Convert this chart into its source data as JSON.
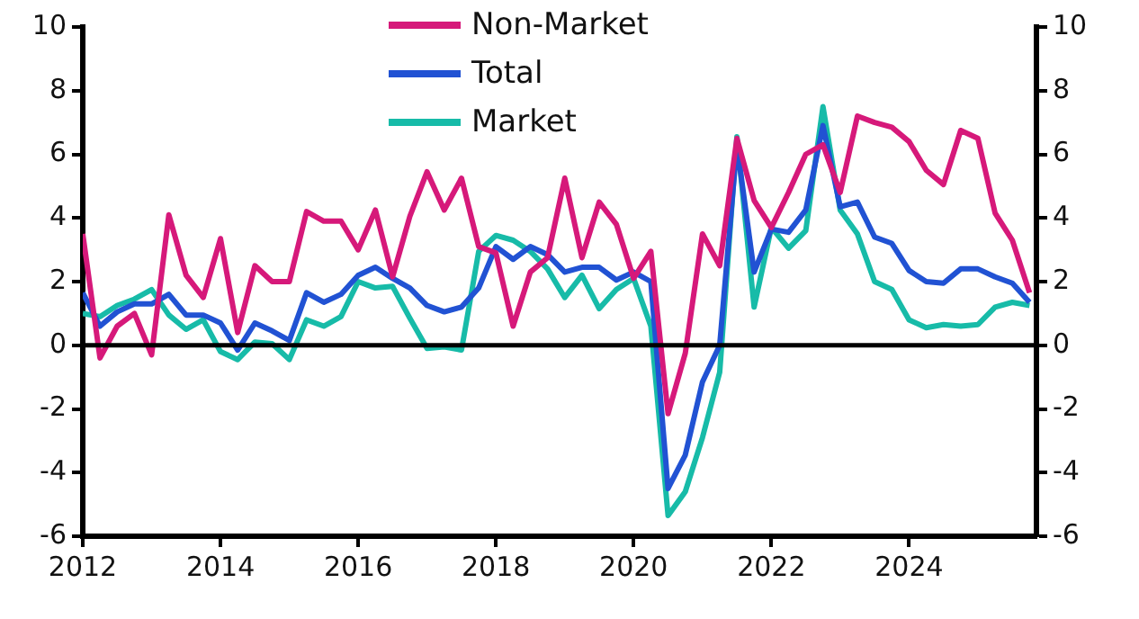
{
  "chart_data": {
    "type": "line",
    "x": [
      2012,
      2012.25,
      2012.5,
      2012.75,
      2013,
      2013.25,
      2013.5,
      2013.75,
      2014,
      2014.25,
      2014.5,
      2014.75,
      2015,
      2015.25,
      2015.5,
      2015.75,
      2016,
      2016.25,
      2016.5,
      2016.75,
      2017,
      2017.25,
      2017.5,
      2017.75,
      2018,
      2018.25,
      2018.5,
      2018.75,
      2019,
      2019.25,
      2019.5,
      2019.75,
      2020,
      2020.25,
      2020.5,
      2020.75,
      2021,
      2021.25,
      2021.5,
      2021.75,
      2022,
      2022.25,
      2022.5,
      2022.75,
      2023,
      2023.25,
      2023.5,
      2023.75,
      2024,
      2024.25,
      2024.5,
      2024.75,
      2025,
      2025.25,
      2025.5,
      2025.75
    ],
    "series": [
      {
        "name": "Non-Market",
        "color": "#d6197a",
        "values": [
          3.5,
          -0.4,
          0.6,
          1.0,
          -0.3,
          4.1,
          2.2,
          1.5,
          3.35,
          0.4,
          2.5,
          2.0,
          2.0,
          4.2,
          3.9,
          3.9,
          3.0,
          4.25,
          2.15,
          4.05,
          5.45,
          4.25,
          5.25,
          3.1,
          2.9,
          0.6,
          2.3,
          2.75,
          5.25,
          2.75,
          4.5,
          3.8,
          2.1,
          2.95,
          -2.15,
          -0.25,
          3.5,
          2.5,
          6.5,
          4.55,
          3.7,
          4.8,
          6.0,
          6.3,
          4.8,
          7.2,
          7.0,
          6.85,
          6.4,
          5.5,
          5.05,
          6.75,
          6.5,
          4.15,
          3.3,
          1.65
        ]
      },
      {
        "name": "Total",
        "color": "#2152d3",
        "values": [
          1.65,
          0.6,
          1.05,
          1.3,
          1.3,
          1.6,
          0.95,
          0.95,
          0.7,
          -0.15,
          0.7,
          0.45,
          0.15,
          1.65,
          1.35,
          1.6,
          2.2,
          2.45,
          2.1,
          1.8,
          1.25,
          1.05,
          1.2,
          1.8,
          3.1,
          2.7,
          3.1,
          2.85,
          2.3,
          2.45,
          2.45,
          2.05,
          2.3,
          2.0,
          -4.5,
          -3.45,
          -1.15,
          0.0,
          6.3,
          2.3,
          3.65,
          3.55,
          4.25,
          6.9,
          4.35,
          4.5,
          3.4,
          3.2,
          2.35,
          2.0,
          1.95,
          2.4,
          2.4,
          2.15,
          1.95,
          1.35
        ]
      },
      {
        "name": "Market",
        "color": "#17bba8",
        "values": [
          1.0,
          0.9,
          1.25,
          1.45,
          1.75,
          0.95,
          0.5,
          0.8,
          -0.2,
          -0.45,
          0.1,
          0.05,
          -0.45,
          0.8,
          0.6,
          0.9,
          2.0,
          1.8,
          1.85,
          0.85,
          -0.1,
          -0.05,
          -0.15,
          2.95,
          3.45,
          3.3,
          2.95,
          2.4,
          1.5,
          2.2,
          1.15,
          1.75,
          2.1,
          0.6,
          -5.35,
          -4.6,
          -2.9,
          -0.85,
          6.55,
          1.2,
          3.7,
          3.05,
          3.6,
          7.5,
          4.25,
          3.5,
          2.0,
          1.75,
          0.8,
          0.55,
          0.65,
          0.6,
          0.65,
          1.2,
          1.35,
          1.25
        ]
      }
    ],
    "xlim": [
      2012,
      2025.85
    ],
    "xticks": [
      2012,
      2014,
      2016,
      2018,
      2020,
      2022,
      2024
    ],
    "ylim": [
      -6,
      10
    ],
    "yticks": [
      -6,
      -4,
      -2,
      0,
      2,
      4,
      6,
      8,
      10
    ],
    "y2lim": [
      -6,
      10
    ],
    "y2ticks": [
      -6,
      -4,
      -2,
      0,
      2,
      4,
      6,
      8,
      10
    ],
    "ref_lines": [
      {
        "axis": "y",
        "value": 0
      }
    ],
    "grid": false,
    "legend": "top",
    "marker": "none",
    "line_style": "solid"
  }
}
